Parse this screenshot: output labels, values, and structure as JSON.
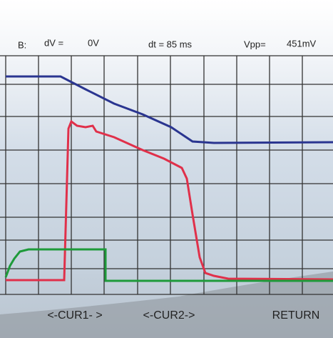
{
  "header": {
    "channel": "B:",
    "dv_label": "dV =",
    "dv_value": "0V",
    "dt": "dt = 85 ms",
    "vpp_label": "Vpp=",
    "vpp_value": "451mV"
  },
  "buttons": [
    "<-CUR1- >",
    "<-CUR2->",
    "RETURN"
  ]
}
